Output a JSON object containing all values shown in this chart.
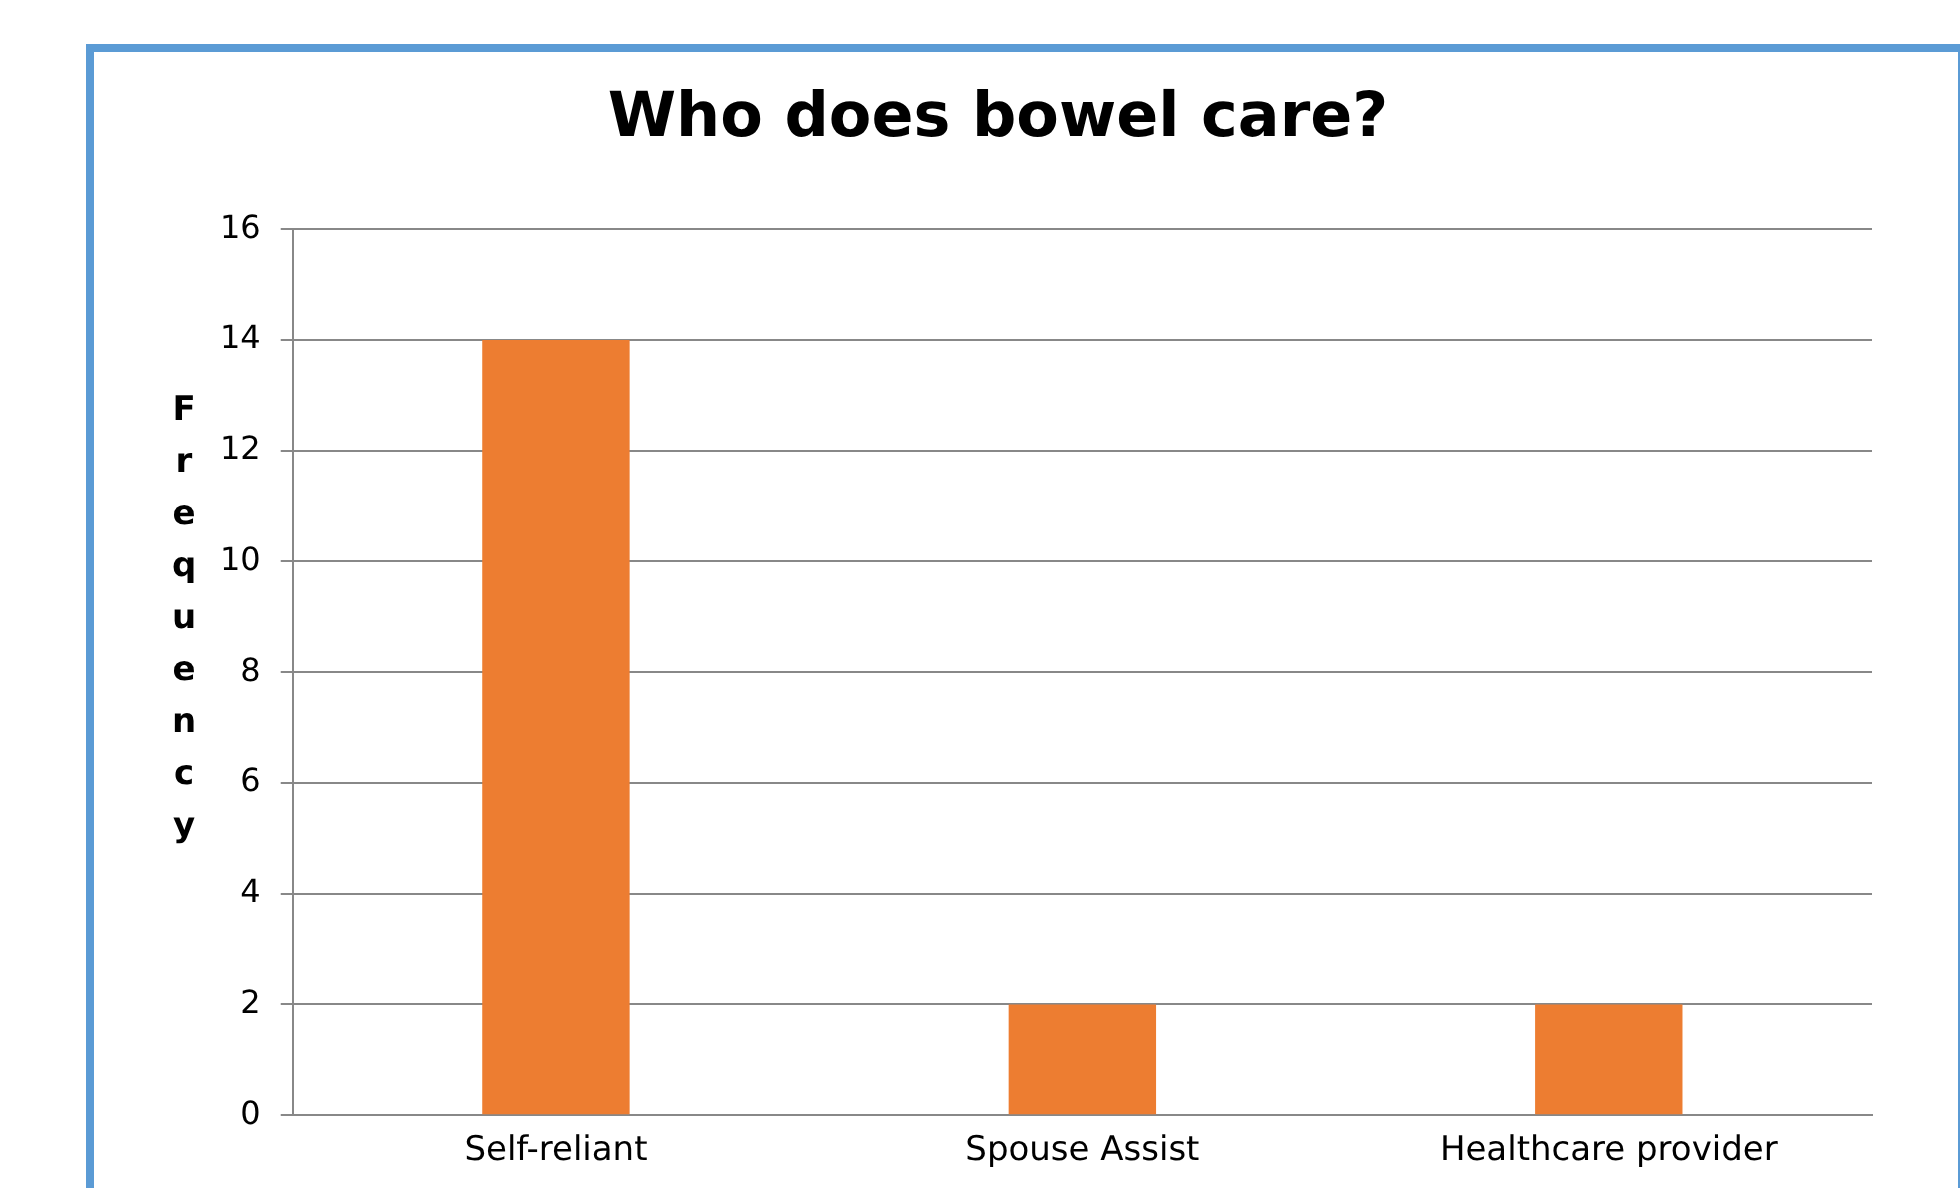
{
  "chart_data": {
    "type": "bar",
    "title": "Who does bowel care?",
    "ylabel": "Frequency",
    "categories": [
      "Self-reliant",
      "Spouse Assist",
      "Healthcare provider"
    ],
    "values": [
      14,
      2,
      2
    ],
    "color": "#ed7d31",
    "ylim": [
      0,
      16
    ],
    "yticks": [
      0,
      2,
      4,
      6,
      8,
      10,
      12,
      14,
      16
    ],
    "grid": "y"
  }
}
